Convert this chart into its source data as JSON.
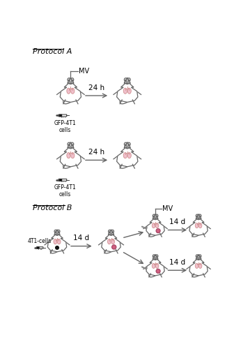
{
  "title_A": "Protocol A",
  "title_B": "Protocol B",
  "bg_color": "#ffffff",
  "outline_color": "#666666",
  "lung_color": "#f0c0cc",
  "lung_edge": "#d09090",
  "tumor_color": "#d06080",
  "tumor_edge": "#a04060",
  "arrow_color": "#666666",
  "label_24h": "24 h",
  "label_14d": "14 d",
  "label_MV": "MV",
  "label_GFP": "GFP-4T1\ncells",
  "label_4T1": "4T1-cells",
  "syringe_color": "#444444"
}
